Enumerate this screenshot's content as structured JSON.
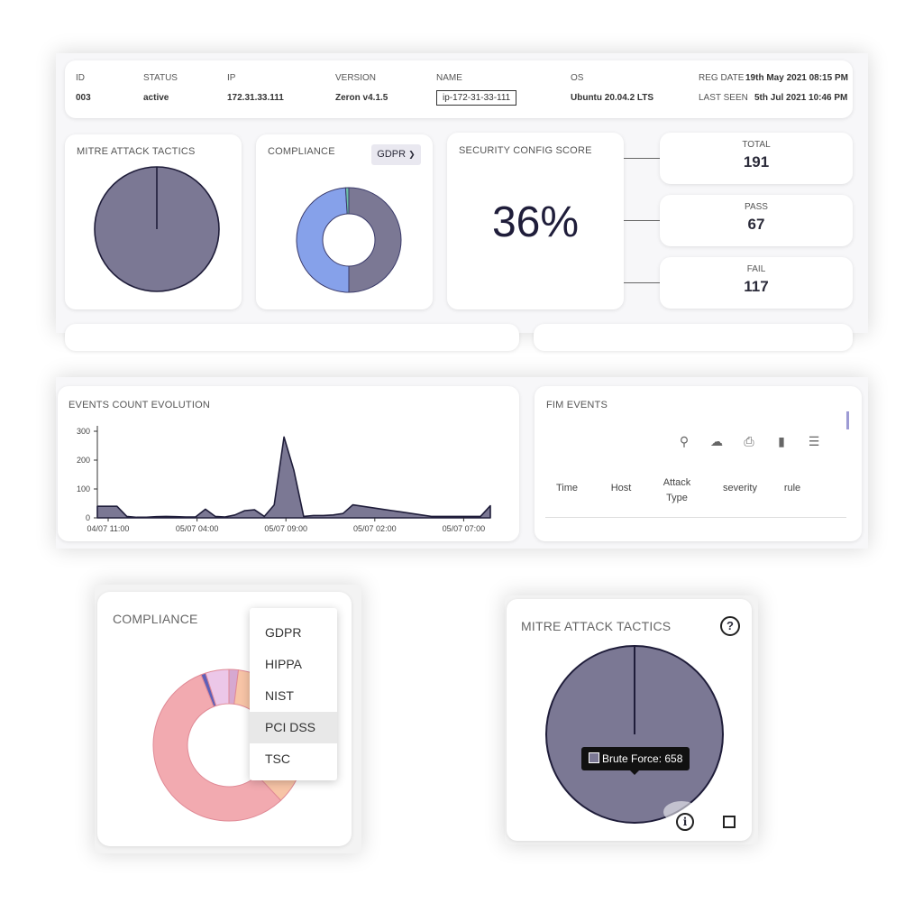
{
  "agent": {
    "labels": {
      "id": "ID",
      "status": "STATUS",
      "ip": "IP",
      "version": "VERSION",
      "name": "NAME",
      "os": "OS",
      "reg_date": "REG DATE",
      "last_seen": "LAST SEEN"
    },
    "values": {
      "id": "003",
      "status": "active",
      "ip": "172.31.33.111",
      "version": "Zeron v4.1.5",
      "name": "ip-172-31-33-111",
      "os": "Ubuntu 20.04.2 LTS",
      "reg_date": "19th May 2021 08:15 PM",
      "last_seen": "5th Jul 2021 10:46 PM"
    }
  },
  "mitre_card": {
    "title": "MITRE ATTACK TACTICS",
    "pie": [
      {
        "label": "Brute Force",
        "value": 658,
        "color": "#7b7894"
      }
    ]
  },
  "compliance_card": {
    "title": "COMPLIANCE",
    "selected": "GDPR",
    "donut": [
      {
        "name": "segment-a",
        "fraction": 0.5,
        "color": "#7b7894"
      },
      {
        "name": "segment-b",
        "fraction": 0.49,
        "color": "#86a1ea"
      },
      {
        "name": "segment-c",
        "fraction": 0.01,
        "color": "#6dbfa6"
      }
    ]
  },
  "security": {
    "title": "SECURITY CONFIG SCORE",
    "score": "36%",
    "total_label": "TOTAL",
    "total": "191",
    "pass_label": "PASS",
    "pass": "67",
    "fail_label": "FAIL",
    "fail": "117"
  },
  "events": {
    "title": "EVENTS COUNT EVOLUTION"
  },
  "chart_data": {
    "type": "area",
    "title": "EVENTS COUNT EVOLUTION",
    "ylim": [
      0,
      300
    ],
    "yticks": [
      0,
      100,
      200,
      300
    ],
    "xticks": [
      "04/07 11:00",
      "05/07 04:00",
      "05/07 09:00",
      "05/07 02:00",
      "05/07 07:00"
    ],
    "values": [
      40,
      40,
      40,
      5,
      2,
      2,
      4,
      5,
      4,
      3,
      3,
      30,
      5,
      3,
      10,
      25,
      28,
      5,
      45,
      280,
      165,
      5,
      8,
      8,
      10,
      15,
      45,
      40,
      35,
      30,
      25,
      20,
      15,
      10,
      5,
      5,
      5,
      5,
      5,
      5,
      42
    ],
    "color": "#7b7894"
  },
  "fim": {
    "title": "FIM EVENTS",
    "columns": [
      "Time",
      "Host",
      "Attack Type",
      "severity",
      "rule"
    ],
    "icons": [
      "search-icon",
      "cloud-download-icon",
      "print-icon",
      "columns-icon",
      "filter-icon"
    ]
  },
  "compliance_zoom": {
    "title": "COMPLIANCE",
    "options": [
      "GDPR",
      "HIPPA",
      "NIST",
      "PCI DSS",
      "TSC"
    ],
    "highlighted": "PCI DSS",
    "donut": [
      {
        "name": "segment-a",
        "fraction": 0.02,
        "color": "#d6a8d0"
      },
      {
        "name": "segment-b",
        "fraction": 0.36,
        "color": "#f7c4a6"
      },
      {
        "name": "segment-c",
        "fraction": 0.56,
        "color": "#f2aab0"
      },
      {
        "name": "segment-d",
        "fraction": 0.01,
        "color": "#5e5fb8"
      },
      {
        "name": "segment-e",
        "fraction": 0.05,
        "color": "#ecc7e8"
      }
    ]
  },
  "mitre_zoom": {
    "title": "MITRE ATTACK TACTICS",
    "tooltip": "Brute Force: 658",
    "tooltip_color": "#7b7894"
  }
}
